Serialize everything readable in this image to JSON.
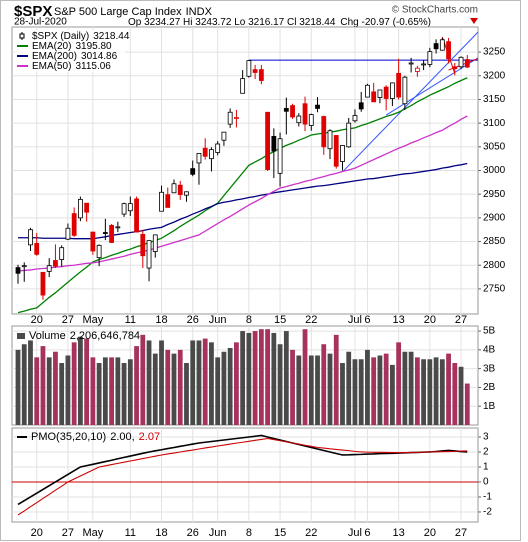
{
  "header": {
    "symbol": "$SPX",
    "name": "S&P 500 Large Cap Index",
    "exchange": "INDX",
    "copyright": "© StockCharts.com",
    "date": "28-Jul-2020",
    "quote": "Op 3234.27 Hi 3243.72 Lo 3216.17 Cl 3218.44",
    "change": "Chg -20.97 (-0.65%)"
  },
  "chart_data": [
    {
      "type": "candlestick",
      "legend": "top-left",
      "grid": true,
      "up_color": "#000000",
      "down_color": "#e00000",
      "categories": [
        null,
        null,
        null,
        "20",
        null,
        null,
        null,
        null,
        "27",
        null,
        null,
        null,
        "May",
        null,
        null,
        null,
        null,
        null,
        "11",
        null,
        null,
        null,
        null,
        "18",
        null,
        null,
        null,
        null,
        "26",
        null,
        null,
        null,
        "Jun",
        null,
        null,
        null,
        null,
        "8",
        null,
        null,
        null,
        null,
        "15",
        null,
        null,
        null,
        null,
        "22",
        null,
        null,
        null,
        null,
        null,
        null,
        "Jul",
        null,
        "6",
        null,
        null,
        null,
        null,
        "13",
        null,
        null,
        null,
        null,
        "20",
        null,
        null,
        null,
        null,
        "27",
        null
      ],
      "ylim": [
        2697,
        3303
      ],
      "yticks": [
        2750,
        2800,
        2850,
        2900,
        2950,
        3000,
        3050,
        3100,
        3150,
        3200,
        3250
      ],
      "series": [
        {
          "name": "$SPX (Daily)",
          "legend_value": "3218.44",
          "open": [
            2795,
            2799,
            2843,
            2846,
            2785,
            2787,
            2810,
            2812,
            2855,
            2909,
            2900,
            2931,
            2870,
            2816,
            2869,
            2884,
            2879,
            2908,
            2915,
            2940,
            2865,
            2794,
            2829,
            2914,
            2949,
            2953,
            2969,
            2948,
            3004,
            3016,
            3047,
            3025,
            3038,
            3064,
            3098,
            3112,
            3163,
            3199,
            3213,
            3213,
            3123,
            3072,
            2994,
            3131,
            3137,
            3101,
            3141,
            3095,
            3138,
            3114,
            3046,
            3074,
            3019,
            3050,
            3105,
            3143,
            3155,
            3166,
            3154,
            3176,
            3152,
            3205,
            3141,
            3226,
            3209,
            3224,
            3224,
            3268,
            3254,
            3272,
            3219,
            3219,
            3234.27
          ],
          "high": [
            2801,
            2806,
            2879,
            2868,
            2785,
            2815,
            2844,
            2842,
            2888,
            2922,
            2945,
            2931,
            2870,
            2844,
            2898,
            2887,
            2892,
            2932,
            2945,
            2945,
            2875,
            2852,
            2865,
            2968,
            2964,
            2981,
            2978,
            2956,
            3021,
            3036,
            3068,
            3049,
            3062,
            3081,
            3131,
            3128,
            3212,
            3233,
            3223,
            3223,
            3123,
            3089,
            3080,
            3154,
            3141,
            3121,
            3156,
            3120,
            3155,
            3116,
            3087,
            3074,
            3054,
            3111,
            3129,
            3166,
            3183,
            3185,
            3170,
            3180,
            3186,
            3236,
            3200,
            3238,
            3221,
            3233,
            3259,
            3277,
            3280,
            3280,
            3227,
            3241,
            3243.72
          ],
          "low": [
            2761,
            2765,
            2830,
            2820,
            2727,
            2775,
            2794,
            2797,
            2853,
            2860,
            2893,
            2892,
            2822,
            2798,
            2853,
            2847,
            2870,
            2902,
            2904,
            2869,
            2794,
            2766,
            2816,
            2914,
            2922,
            2953,
            2938,
            2934,
            2988,
            2970,
            3023,
            2998,
            3032,
            3052,
            3090,
            3091,
            3163,
            3196,
            3193,
            3182,
            2999,
            2984,
            2966,
            3076,
            3109,
            3093,
            3083,
            3084,
            3123,
            3033,
            3024,
            3004,
            3000,
            3048,
            3101,
            3124,
            3155,
            3145,
            3142,
            3127,
            3136,
            3150,
            3128,
            3207,
            3198,
            3212,
            3218,
            3247,
            3253,
            3226,
            3201,
            3214,
            3216.17
          ],
          "close": [
            2783,
            2799,
            2875,
            2823,
            2737,
            2799,
            2798,
            2837,
            2878,
            2863,
            2939,
            2912,
            2830,
            2842,
            2868,
            2848,
            2881,
            2930,
            2930,
            2870,
            2820,
            2852,
            2864,
            2954,
            2922,
            2972,
            2949,
            2955,
            2992,
            3036,
            3030,
            3044,
            3056,
            3081,
            3123,
            3112,
            3194,
            3232,
            3207,
            3190,
            3002,
            3041,
            3067,
            3125,
            3113,
            3115,
            3098,
            3118,
            3131,
            3050,
            3084,
            3009,
            3053,
            3100,
            3116,
            3130,
            3180,
            3145,
            3170,
            3152,
            3185,
            3155,
            3197,
            3227,
            3216,
            3225,
            3251,
            3257,
            3276,
            3236,
            3215,
            3239,
            3218.44
          ]
        },
        {
          "name": "EMA(20)",
          "legend_value": "3195.80",
          "color": "#008000",
          "values": [
            2700,
            2703,
            2707,
            2710,
            2721,
            2732,
            2742,
            2753,
            2764,
            2775,
            2786,
            2796,
            2807,
            2812,
            2816,
            2821,
            2825,
            2830,
            2834,
            2839,
            2843,
            2848,
            2852,
            2857,
            2865,
            2873,
            2882,
            2890,
            2898,
            2906,
            2915,
            2923,
            2931,
            2947,
            2963,
            2979,
            2995,
            3011,
            3018,
            3025,
            3033,
            3040,
            3047,
            3053,
            3058,
            3064,
            3069,
            3075,
            3077,
            3079,
            3081,
            3083,
            3086,
            3088,
            3090,
            3095,
            3099,
            3104,
            3109,
            3114,
            3118,
            3123,
            3130,
            3137,
            3145,
            3152,
            3159,
            3165,
            3171,
            3177,
            3184,
            3190,
            3195.8
          ]
        },
        {
          "name": "EMA(200)",
          "legend_value": "3014.86",
          "color": "#000080",
          "values": [
            2858,
            2858,
            2858,
            2858,
            2857,
            2857,
            2857,
            2857,
            2857,
            2856,
            2856,
            2856,
            2856,
            2858,
            2860,
            2863,
            2865,
            2867,
            2869,
            2871,
            2873,
            2876,
            2878,
            2880,
            2886,
            2891,
            2897,
            2902,
            2908,
            2913,
            2919,
            2924,
            2930,
            2933,
            2935,
            2938,
            2940,
            2943,
            2945,
            2948,
            2950,
            2953,
            2955,
            2957,
            2959,
            2961,
            2963,
            2965,
            2967,
            2968,
            2970,
            2972,
            2974,
            2976,
            2978,
            2980,
            2982,
            2983,
            2985,
            2987,
            2989,
            2991,
            2993,
            2994,
            2996,
            2998,
            3000,
            3002,
            3005,
            3007,
            3010,
            3012,
            3014.86
          ]
        },
        {
          "name": "EMA(50)",
          "legend_value": "3115.06",
          "color": "#cc33cc",
          "values": [
            2788,
            2789,
            2790,
            2792,
            2793,
            2794,
            2796,
            2797,
            2799,
            2800,
            2802,
            2804,
            2805,
            2807,
            2810,
            2813,
            2816,
            2819,
            2823,
            2826,
            2829,
            2832,
            2836,
            2840,
            2844,
            2848,
            2852,
            2856,
            2860,
            2864,
            2872,
            2880,
            2888,
            2896,
            2903,
            2911,
            2919,
            2927,
            2934,
            2941,
            2949,
            2956,
            2963,
            2966,
            2970,
            2973,
            2977,
            2980,
            2984,
            2987,
            2991,
            2994,
            2998,
            3001,
            3005,
            3011,
            3017,
            3023,
            3029,
            3035,
            3041,
            3047,
            3052,
            3058,
            3063,
            3069,
            3074,
            3080,
            3085,
            3093,
            3100,
            3108,
            3115.06
          ]
        }
      ],
      "trendlines": [
        {
          "x": [
            37,
            74
          ],
          "y": [
            3233,
            3233
          ],
          "color": "#0000cc"
        },
        {
          "x": [
            52,
            74
          ],
          "y": [
            2997,
            3296
          ],
          "color": "#3355ff"
        },
        {
          "x": [
            59,
            74
          ],
          "y": [
            3117,
            3240
          ],
          "color": "#3355ff"
        },
        {
          "x": [
            68,
            70
          ],
          "y": [
            3282,
            3205
          ],
          "color": "#e00000"
        },
        {
          "x": [
            69,
            74
          ],
          "y": [
            3212,
            3238
          ],
          "color": "#e00000"
        }
      ]
    },
    {
      "type": "bar",
      "title": "Volume",
      "title_value": "2,206,646,784",
      "grid": true,
      "up_color": "#4a4a4a",
      "down_color": "#a8325e",
      "ylim": [
        0,
        5.27
      ],
      "yticks": [
        {
          "value": 1,
          "label": "1B"
        },
        {
          "value": 2,
          "label": "2B"
        },
        {
          "value": 3,
          "label": "3B"
        },
        {
          "value": 4,
          "label": "4B"
        },
        {
          "value": 5,
          "label": "5B"
        }
      ],
      "values": [
        4.0,
        4.3,
        4.5,
        3.6,
        4.2,
        3.6,
        3.9,
        3.3,
        3.7,
        4.4,
        4.7,
        4.6,
        3.6,
        3.3,
        3.6,
        3.6,
        3.6,
        3.3,
        3.5,
        4.2,
        4.8,
        4.5,
        3.8,
        4.5,
        4.0,
        3.8,
        4.0,
        3.3,
        4.5,
        4.5,
        4.6,
        4.4,
        3.6,
        3.9,
        4.1,
        4.4,
        5.0,
        4.9,
        5.0,
        5.1,
        5.1,
        4.9,
        4.3,
        5.0,
        4.0,
        3.7,
        5.1,
        3.7,
        3.7,
        4.3,
        3.8,
        4.8,
        3.3,
        3.9,
        3.5,
        3.5,
        4.0,
        3.6,
        3.7,
        3.8,
        3.2,
        4.4,
        3.9,
        3.9,
        3.6,
        3.5,
        3.5,
        3.6,
        3.5,
        3.8,
        3.3,
        3.1,
        2.206646784
      ]
    },
    {
      "type": "line",
      "title": "PMO(35,20,10)",
      "grid": true,
      "hline": 0,
      "hline_color": "#cc0000",
      "ylim": [
        -2.67,
        3.6
      ],
      "yticks": [
        -2,
        -1,
        0,
        1,
        2,
        3
      ],
      "series": [
        {
          "legend_value": "2.00,",
          "color": "#000000",
          "values": [
            -1.5,
            -1.25,
            -1,
            -0.75,
            -0.5,
            -0.25,
            0,
            0.25,
            0.5,
            0.75,
            1,
            1.09,
            1.18,
            1.27,
            1.36,
            1.45,
            1.55,
            1.64,
            1.73,
            1.82,
            1.91,
            2,
            2.08,
            2.15,
            2.23,
            2.3,
            2.38,
            2.45,
            2.53,
            2.6,
            2.65,
            2.7,
            2.75,
            2.8,
            2.85,
            2.9,
            2.95,
            3,
            3.05,
            3.1,
            3,
            2.9,
            2.8,
            2.7,
            2.6,
            2.5,
            2.4,
            2.3,
            2.2,
            2.1,
            2,
            1.9,
            1.8,
            1.81,
            1.83,
            1.84,
            1.86,
            1.87,
            1.89,
            1.9,
            1.91,
            1.93,
            1.94,
            1.96,
            1.97,
            1.99,
            2,
            2.03,
            2.07,
            2.1,
            2.07,
            2.03,
            2
          ]
        },
        {
          "legend_value": "2.07",
          "color": "#cc0000",
          "values": [
            -2.2,
            -1.93,
            -1.65,
            -1.38,
            -1.1,
            -0.83,
            -0.55,
            -0.28,
            0,
            0.2,
            0.4,
            0.6,
            0.8,
            1,
            1.08,
            1.16,
            1.24,
            1.32,
            1.4,
            1.48,
            1.56,
            1.64,
            1.72,
            1.8,
            1.87,
            1.93,
            2,
            2.07,
            2.13,
            2.2,
            2.27,
            2.33,
            2.4,
            2.46,
            2.53,
            2.59,
            2.65,
            2.71,
            2.78,
            2.84,
            2.9,
            2.83,
            2.75,
            2.68,
            2.6,
            2.53,
            2.45,
            2.38,
            2.3,
            2.26,
            2.21,
            2.17,
            2.13,
            2.09,
            2.04,
            2,
            1.99,
            1.98,
            1.98,
            1.97,
            1.96,
            1.95,
            1.96,
            1.97,
            1.98,
            1.99,
            2,
            2.01,
            2.02,
            2.03,
            2.04,
            2.06,
            2.07
          ]
        }
      ]
    }
  ]
}
